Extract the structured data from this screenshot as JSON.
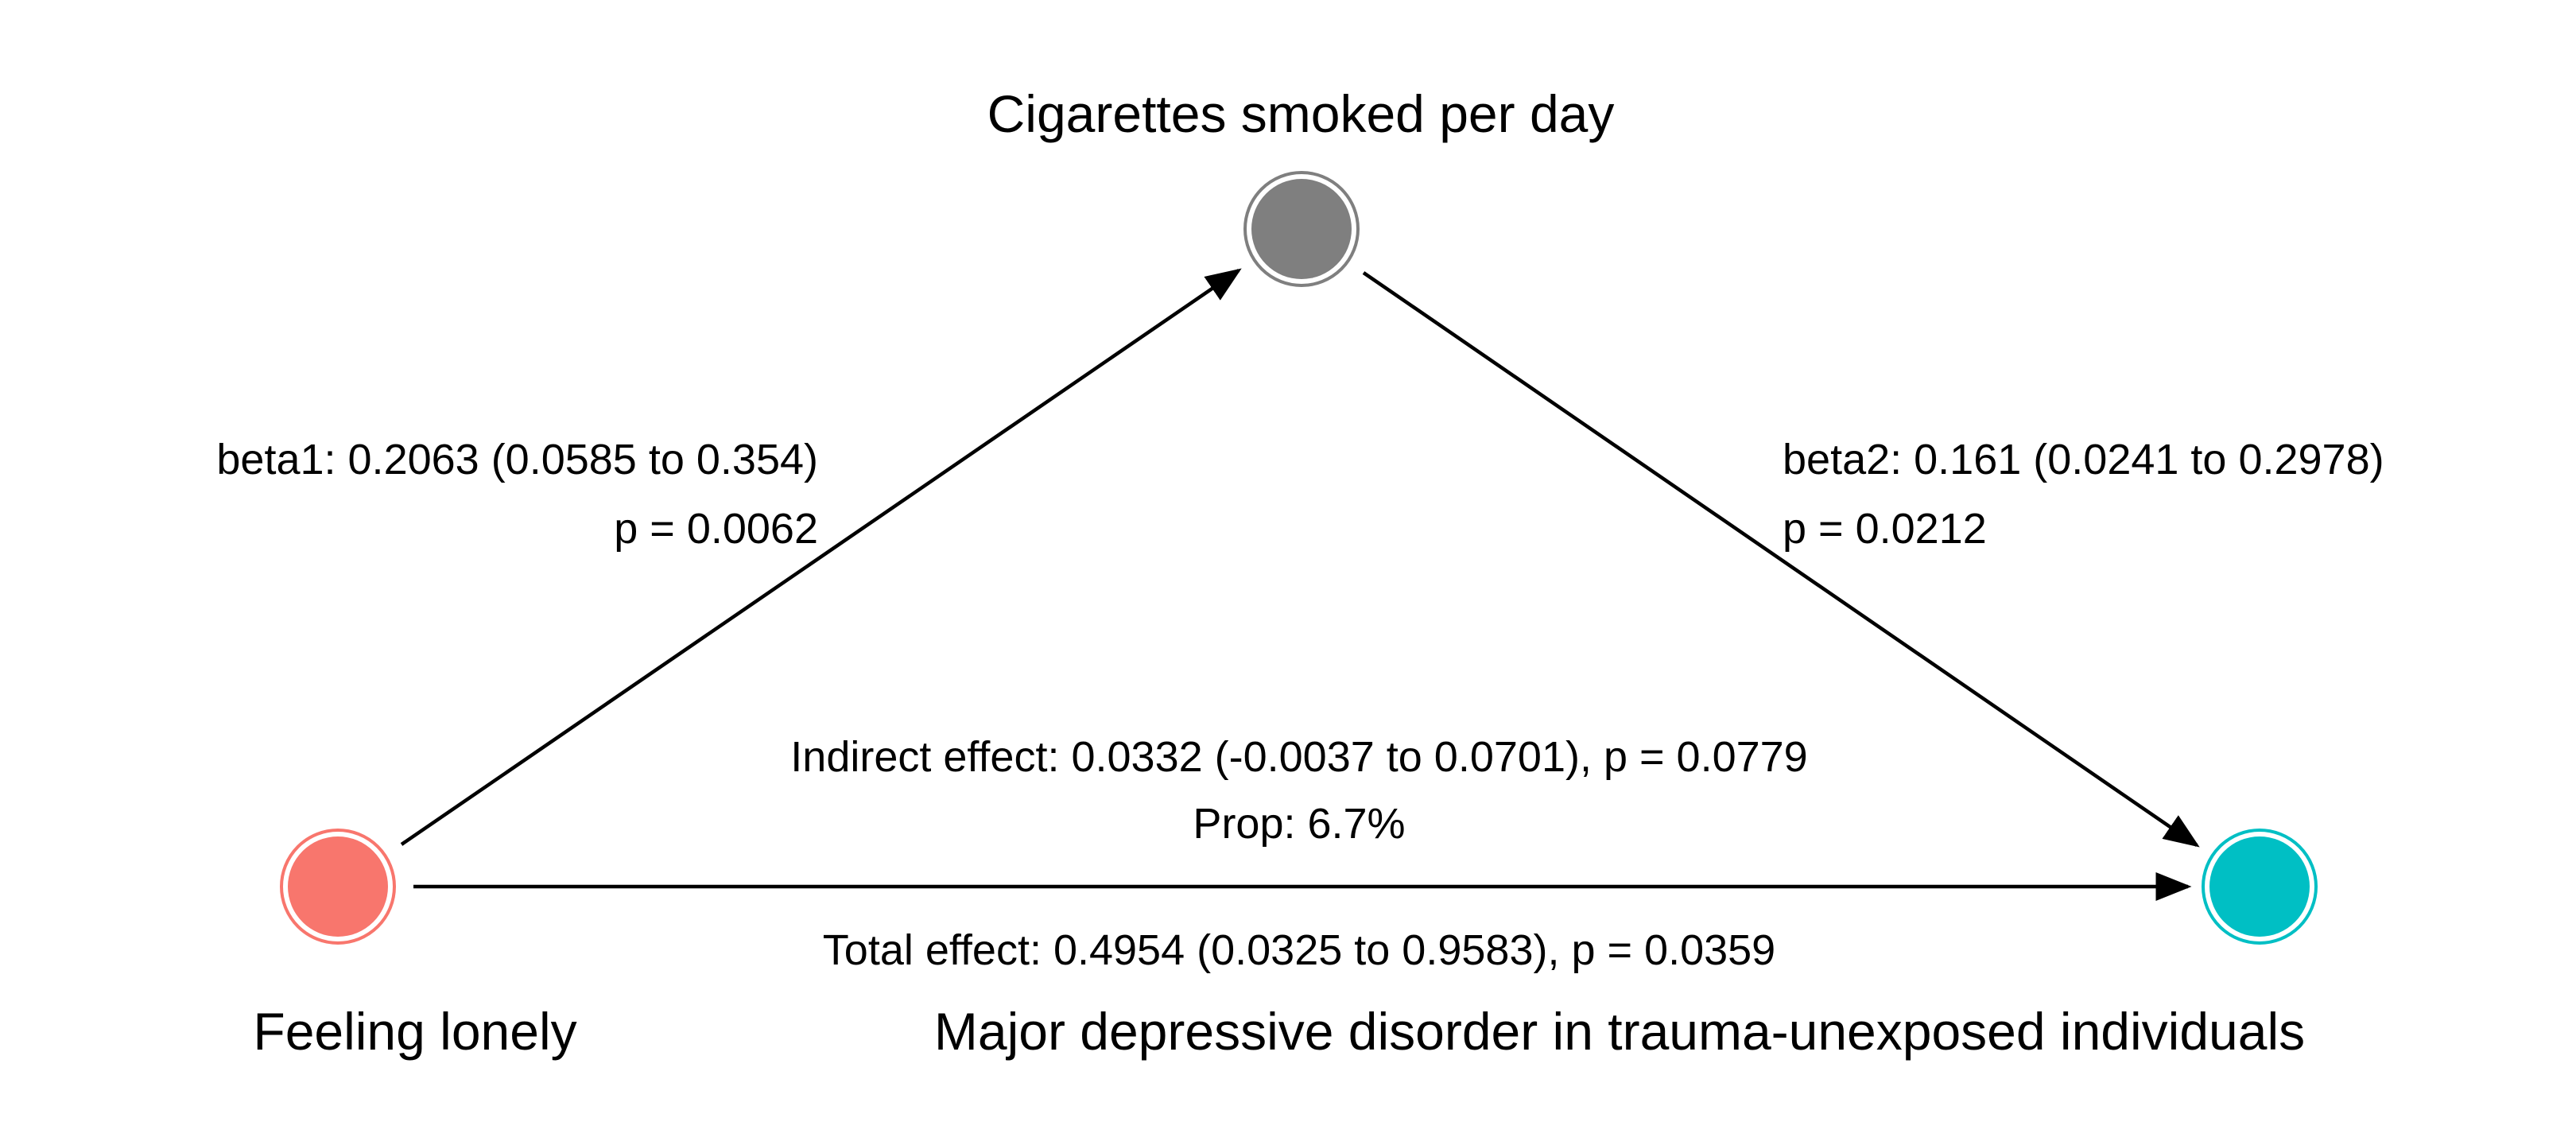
{
  "diagram": {
    "nodes": {
      "mediator": {
        "label": "Cigarettes smoked per day",
        "color": "#7F7F7F"
      },
      "exposure": {
        "label": "Feeling lonely",
        "color": "#F8766D"
      },
      "outcome": {
        "label": "Major depressive disorder in trauma-unexposed individuals",
        "color": "#00BFC4"
      }
    },
    "edges": {
      "beta1": {
        "estimate": "beta1: 0.2063 (0.0585 to 0.354)",
        "p": "p = 0.0062"
      },
      "beta2": {
        "estimate": "beta2: 0.161 (0.0241 to 0.2978)",
        "p": "p = 0.0212"
      },
      "indirect": {
        "estimate": "Indirect effect: 0.0332 (-0.0037 to 0.0701), p = 0.0779",
        "prop": "Prop: 6.7%"
      },
      "total": {
        "estimate": "Total effect: 0.4954 (0.0325 to 0.9583), p = 0.0359"
      }
    }
  }
}
